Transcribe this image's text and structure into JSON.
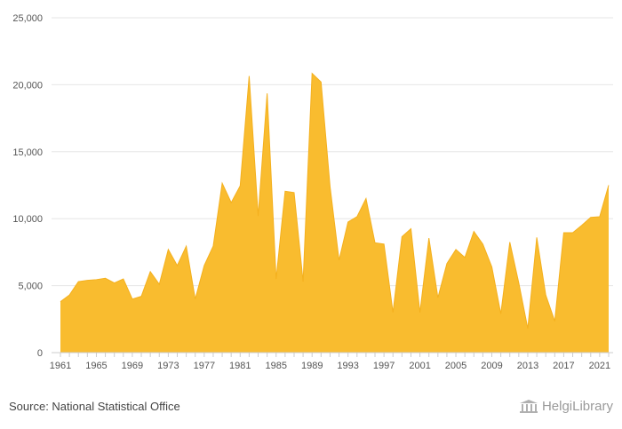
{
  "chart_data": {
    "type": "area",
    "title": "",
    "xlabel": "",
    "ylabel": "",
    "x": [
      1961,
      1962,
      1963,
      1964,
      1965,
      1966,
      1967,
      1968,
      1969,
      1970,
      1971,
      1972,
      1973,
      1974,
      1975,
      1976,
      1977,
      1978,
      1979,
      1980,
      1981,
      1982,
      1983,
      1984,
      1985,
      1986,
      1987,
      1988,
      1989,
      1990,
      1991,
      1992,
      1993,
      1994,
      1995,
      1996,
      1997,
      1998,
      1999,
      2000,
      2001,
      2002,
      2003,
      2004,
      2005,
      2006,
      2007,
      2008,
      2009,
      2010,
      2011,
      2012,
      2013,
      2014,
      2015,
      2016,
      2017,
      2018,
      2019,
      2020,
      2021,
      2022
    ],
    "values": [
      3800,
      4300,
      5300,
      5400,
      5450,
      5550,
      5200,
      5500,
      4000,
      4200,
      6050,
      5100,
      7700,
      6500,
      7950,
      4000,
      6500,
      7950,
      12650,
      11200,
      12450,
      20650,
      10200,
      19350,
      5500,
      12050,
      11950,
      5300,
      20850,
      20200,
      12400,
      6900,
      9750,
      10150,
      11500,
      8200,
      8100,
      3000,
      8650,
      9250,
      3000,
      8550,
      4100,
      6650,
      7700,
      7100,
      9050,
      8100,
      6400,
      2900,
      8250,
      5200,
      1800,
      8600,
      4300,
      2350,
      8950,
      8950,
      9500,
      10100,
      10150,
      12500
    ],
    "ylim": [
      0,
      25000
    ],
    "yticks": [
      0,
      5000,
      10000,
      15000,
      20000,
      25000
    ],
    "ytick_labels": [
      "0",
      "5,000",
      "10,000",
      "15,000",
      "20,000",
      "25,000"
    ],
    "xtick_labels": [
      "1961",
      "1965",
      "1969",
      "1973",
      "1977",
      "1981",
      "1985",
      "1989",
      "1993",
      "1997",
      "2001",
      "2005",
      "2009",
      "2013",
      "2017",
      "2021"
    ],
    "grid": true,
    "colors": {
      "fill": "#F9BC2F",
      "line": "#F4B01E",
      "grid": "#e6e6e6",
      "axis": "#cccccc"
    }
  },
  "footer": {
    "source": "Source: National Statistical Office",
    "logo_text": "HelgiLibrary"
  }
}
